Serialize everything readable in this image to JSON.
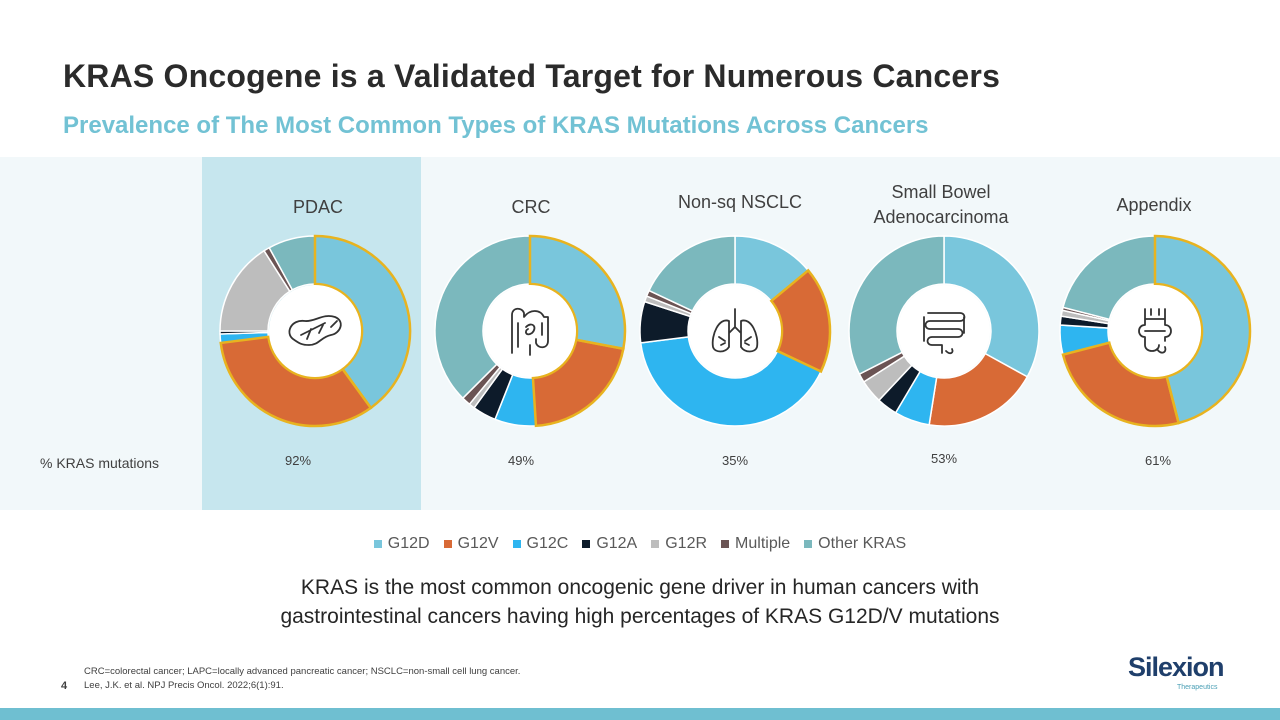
{
  "title": "KRAS Oncogene is a Validated Target for Numerous Cancers",
  "subtitle": "Prevalence of The Most Common Types of KRAS Mutations Across Cancers",
  "row_label": "% KRAS mutations",
  "colors": {
    "G12D": "#79c6dc",
    "G12V": "#d86a36",
    "G12C": "#2eb5f0",
    "G12A": "#0d1b2a",
    "G12R": "#bdbdbd",
    "Multiple": "#6b5454",
    "Other KRAS": "#7bb8bd",
    "highlight_outline": "#e8b31f",
    "title_accent": "#72c2d4"
  },
  "legend": [
    "G12D",
    "G12V",
    "G12C",
    "G12A",
    "G12R",
    "Multiple",
    "Other KRAS"
  ],
  "statement": {
    "line1": "KRAS is the most common oncogenic gene driver in human cancers with",
    "line2": "gastrointestinal cancers having high percentages of KRAS G12D/V mutations"
  },
  "footnotes": {
    "line1": "CRC=colorectal cancer; LAPC=locally advanced pancreatic cancer; NSCLC=non-small cell lung cancer.",
    "line2": "Lee, J.K. et al. NPJ Precis Oncol. 2022;6(1):91."
  },
  "page_number": "4",
  "logo": {
    "name": "Silexion",
    "tagline": "Therapeutics"
  },
  "chart_data": [
    {
      "type": "pie",
      "title": "PDAC",
      "kras_pct": "92%",
      "icon": "pancreas-icon",
      "highlighted": [
        "G12D",
        "G12V"
      ],
      "categories": [
        "G12D",
        "G12V",
        "G12C",
        "G12A",
        "G12R",
        "Multiple",
        "Other KRAS"
      ],
      "values": [
        40,
        33,
        1.5,
        0.5,
        16,
        1,
        8
      ]
    },
    {
      "type": "pie",
      "title": "CRC",
      "kras_pct": "49%",
      "icon": "colon-icon",
      "highlighted": [
        "G12D",
        "G12V"
      ],
      "categories": [
        "G12D",
        "G12V",
        "G12C",
        "G12A",
        "G12R",
        "Multiple",
        "Other KRAS"
      ],
      "values": [
        28,
        21,
        7,
        4,
        1,
        1.5,
        37.5
      ]
    },
    {
      "type": "pie",
      "title": "Non-sq NSCLC",
      "kras_pct": "35%",
      "icon": "lungs-icon",
      "highlighted": [
        "G12V"
      ],
      "categories": [
        "G12D",
        "G12V",
        "G12C",
        "G12A",
        "G12R",
        "Multiple",
        "Other KRAS"
      ],
      "values": [
        14,
        18,
        41,
        7,
        1,
        1,
        18
      ]
    },
    {
      "type": "pie",
      "title": "Small Bowel Adenocarcinoma",
      "kras_pct": "53%",
      "icon": "small-bowel-icon",
      "highlighted": [],
      "categories": [
        "G12D",
        "G12V",
        "G12C",
        "G12A",
        "G12R",
        "Multiple",
        "Other KRAS"
      ],
      "values": [
        33,
        19.5,
        6,
        3.5,
        4,
        1.5,
        32.5
      ]
    },
    {
      "type": "pie",
      "title": "Appendix",
      "kras_pct": "61%",
      "icon": "appendix-icon",
      "highlighted": [
        "G12D",
        "G12V"
      ],
      "categories": [
        "G12D",
        "G12V",
        "G12C",
        "G12A",
        "G12R",
        "Multiple",
        "Other KRAS"
      ],
      "values": [
        46,
        25,
        5,
        1.5,
        1,
        0.5,
        21
      ]
    }
  ]
}
